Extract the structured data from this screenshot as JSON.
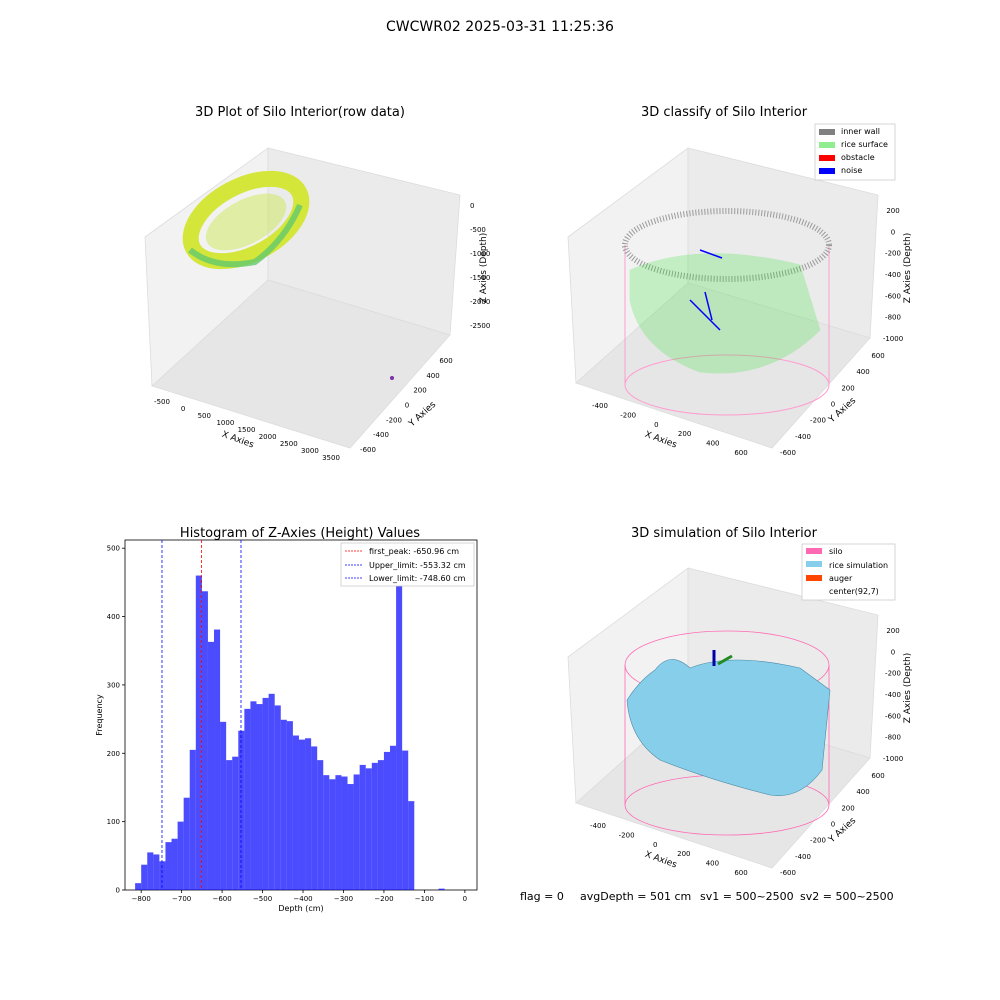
{
  "figure": {
    "suptitle": "CWCWR02 2025-03-31 11:25:36",
    "status_line": {
      "flag": "flag = 0",
      "avg_depth": "avgDepth = 501 cm",
      "sv1": "sv1 = 500~2500",
      "sv2": "sv2 = 500~2500"
    }
  },
  "panels": {
    "raw": {
      "title": "3D Plot of Silo Interior(row data)",
      "xlabel": "X Axies",
      "ylabel": "Y Axies",
      "zlabel": "Z Axies (Depth)",
      "xticks": [
        "-500",
        "0",
        "500",
        "1000",
        "1500",
        "2000",
        "2500",
        "3000",
        "3500"
      ],
      "yticks": [
        "600",
        "400",
        "200",
        "0",
        "-200",
        "-400",
        "-600"
      ],
      "zticks": [
        "0",
        "-500",
        "-1000",
        "-1500",
        "-2000",
        "-2500"
      ],
      "colors": {
        "cloud_light": "#e8e83a",
        "cloud_dark": "#5fd06a",
        "outlier": "#7b2fa8"
      }
    },
    "classify": {
      "title": "3D classify of Silo Interior",
      "xlabel": "X Axies",
      "ylabel": "Y Axies",
      "zlabel": "Z Axies (Depth)",
      "xticks": [
        "-400",
        "-200",
        "0",
        "200",
        "400",
        "600"
      ],
      "yticks": [
        "600",
        "400",
        "200",
        "0",
        "-200",
        "-400",
        "-600"
      ],
      "zticks": [
        "200",
        "0",
        "-200",
        "-400",
        "-600",
        "-800",
        "-1000"
      ],
      "legend": [
        {
          "label": "inner wall",
          "color": "#808080"
        },
        {
          "label": "rice surface",
          "color": "#90ee90"
        },
        {
          "label": "obstacle",
          "color": "#ff0000"
        },
        {
          "label": "noise",
          "color": "#0000ff"
        }
      ],
      "colors": {
        "silo": "#ff9ccf",
        "surface": "#22e022"
      }
    },
    "simulation": {
      "title": "3D simulation of Silo Interior",
      "xlabel": "X Axies",
      "ylabel": "Y Axies",
      "zlabel": "Z Axies (Depth)",
      "xticks": [
        "-400",
        "-200",
        "0",
        "200",
        "400",
        "600"
      ],
      "yticks": [
        "600",
        "400",
        "200",
        "0",
        "-200",
        "-400",
        "-600"
      ],
      "zticks": [
        "200",
        "0",
        "-200",
        "-400",
        "-600",
        "-800",
        "-1000"
      ],
      "legend": [
        {
          "label": "silo",
          "color": "#ff69b4"
        },
        {
          "label": "rice simulation",
          "color": "#87ceeb"
        },
        {
          "label": "auger",
          "color": "#ff4500"
        },
        {
          "label": "center(92,7)",
          "color": ""
        }
      ]
    }
  },
  "chart_data": [
    {
      "type": "bar",
      "title": "Histogram of Z-Axies (Height) Values",
      "xlabel": "Depth (cm)",
      "ylabel": "Frequency",
      "xlim": [
        -840,
        30
      ],
      "ylim": [
        0,
        512
      ],
      "xticks": [
        -800,
        -700,
        -600,
        -500,
        -400,
        -300,
        -200,
        -100,
        0
      ],
      "yticks": [
        0,
        100,
        200,
        300,
        400,
        500
      ],
      "bar_color": "#0000ff",
      "bin_width": 15,
      "bins_start": [
        -815,
        -800,
        -785,
        -770,
        -755,
        -740,
        -725,
        -710,
        -695,
        -680,
        -665,
        -650,
        -635,
        -620,
        -605,
        -590,
        -575,
        -560,
        -545,
        -530,
        -515,
        -500,
        -485,
        -470,
        -455,
        -440,
        -425,
        -410,
        -395,
        -380,
        -365,
        -350,
        -335,
        -320,
        -305,
        -290,
        -275,
        -260,
        -245,
        -230,
        -215,
        -200,
        -185,
        -170,
        -155,
        -140,
        -125,
        -110,
        -95,
        -80,
        -65,
        -50,
        -35,
        -20,
        -5
      ],
      "values": [
        10,
        37,
        55,
        52,
        42,
        70,
        75,
        100,
        135,
        205,
        460,
        437,
        363,
        381,
        246,
        190,
        195,
        233,
        265,
        276,
        272,
        281,
        287,
        270,
        249,
        247,
        226,
        220,
        222,
        210,
        190,
        168,
        162,
        168,
        166,
        155,
        169,
        183,
        178,
        186,
        190,
        202,
        211,
        487,
        204,
        130,
        0,
        0,
        0,
        0,
        2,
        0,
        0,
        0,
        0
      ],
      "vlines": [
        {
          "x": -650.96,
          "label": "first_peak: -650.96 cm",
          "color": "#ff0000"
        },
        {
          "x": -553.32,
          "label": "Upper_limit: -553.32 cm",
          "color": "#0000ff"
        },
        {
          "x": -748.6,
          "label": "Lower_limit: -748.60 cm",
          "color": "#0000ff"
        }
      ]
    }
  ]
}
